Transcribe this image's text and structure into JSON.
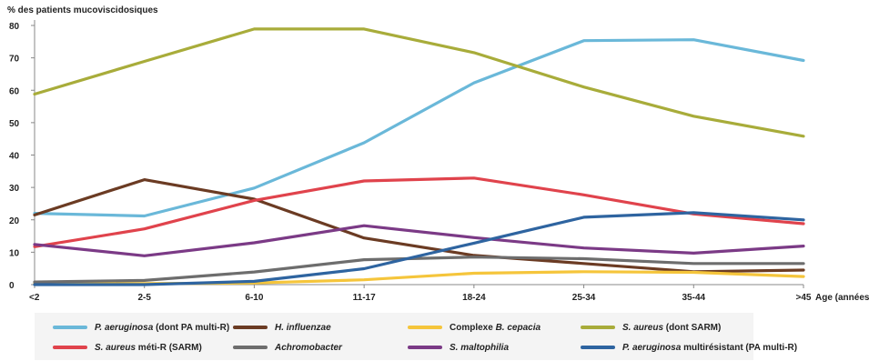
{
  "chart_data": {
    "type": "line",
    "ylabel": "% des patients mucoviscidosiques",
    "xlabel": "Age (années)",
    "categories": [
      "<2",
      "2-5",
      "6-10",
      "11-17",
      "18-24",
      "25-34",
      "35-44",
      ">45"
    ],
    "yticks": [
      "0",
      "10",
      "20",
      "30",
      "40",
      "50",
      "60",
      "70",
      "80"
    ],
    "ylim": [
      0,
      80
    ],
    "grid": false,
    "legend_position": "bottom",
    "series": [
      {
        "name": "P. aeruginosa (dont PA multi-R)",
        "color": "#6ab8d9",
        "values": [
          22,
          21.2,
          29.8,
          43.8,
          62.3,
          75.3,
          75.6,
          69.2
        ]
      },
      {
        "name": "H. influenzae",
        "color": "#6b3b23",
        "values": [
          21.5,
          32.4,
          26.4,
          14.4,
          9.0,
          6.5,
          4.0,
          4.5
        ]
      },
      {
        "name": "Complexe B. cepacia",
        "color": "#f5c53b",
        "values": [
          0.5,
          0.3,
          0.5,
          1.5,
          3.5,
          4.0,
          3.8,
          2.5
        ]
      },
      {
        "name": "S. aureus (dont SARM)",
        "color": "#a8ac3a",
        "values": [
          58.8,
          68.9,
          78.9,
          78.9,
          71.6,
          61.0,
          52.0,
          45.8
        ]
      },
      {
        "name": "S. aureus méti-R (SARM)",
        "color": "#e0434c",
        "values": [
          11.7,
          17.2,
          26.0,
          32.0,
          32.9,
          27.7,
          21.8,
          18.8
        ]
      },
      {
        "name": "Achromobacter",
        "color": "#6d6d6d",
        "values": [
          0.8,
          1.3,
          3.9,
          7.7,
          8.5,
          8.0,
          6.5,
          6.5
        ]
      },
      {
        "name": "S. maltophilia",
        "color": "#7b3a86",
        "values": [
          12.4,
          8.9,
          12.9,
          18.2,
          14.5,
          11.3,
          9.7,
          11.9
        ]
      },
      {
        "name": "P. aeruginosa multirésistant (PA multi-R)",
        "color": "#2e64a0",
        "values": [
          0,
          0,
          1.0,
          4.9,
          12.8,
          20.8,
          22.2,
          20.0
        ]
      }
    ]
  },
  "legend": {
    "items": [
      {
        "italic": "P. aeruginosa",
        "rest": " (dont PA multi-R)",
        "color": "#6ab8d9"
      },
      {
        "italic": "H. influenzae",
        "rest": "",
        "color": "#6b3b23"
      },
      {
        "pre": "Complexe ",
        "italic": "B. cepacia",
        "rest": "",
        "color": "#f5c53b"
      },
      {
        "italic": "S. aureus",
        "rest": " (dont SARM)",
        "color": "#a8ac3a"
      },
      {
        "italic": "S. aureus",
        "rest": " méti-R (SARM)",
        "color": "#e0434c"
      },
      {
        "italic": "Achromobacter",
        "rest": "",
        "color": "#6d6d6d"
      },
      {
        "italic": "S. maltophilia",
        "rest": "",
        "color": "#7b3a86"
      },
      {
        "italic": "P. aeruginosa",
        "rest": " multirésistant (PA multi-R)",
        "color": "#2e64a0"
      }
    ]
  }
}
